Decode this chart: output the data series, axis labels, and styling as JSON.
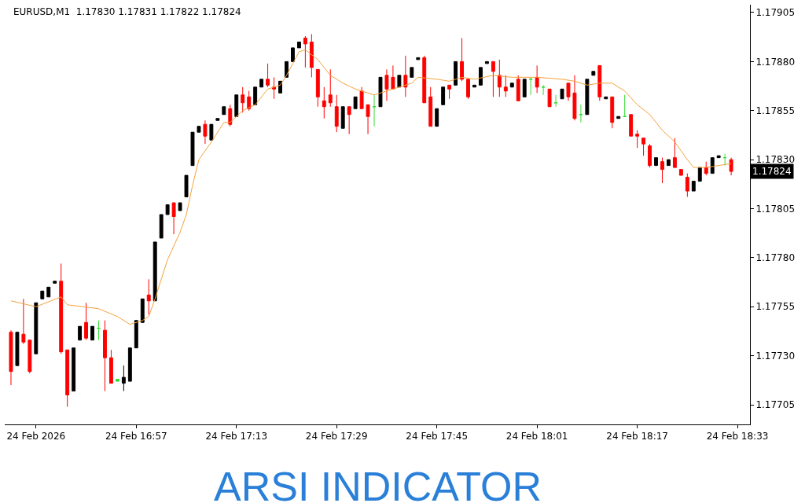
{
  "chart_data": {
    "type": "candlestick",
    "title": "EURUSD,M1  1.17830 1.17831 1.17822 1.17824",
    "subtitle": "ARSI INDICATOR",
    "x": [
      "2026-02-24T16:37",
      "2026-02-24T16:38",
      "2026-02-24T16:39",
      "2026-02-24T16:40",
      "2026-02-24T16:41",
      "2026-02-24T16:42",
      "2026-02-24T16:43",
      "2026-02-24T16:44",
      "2026-02-24T16:45",
      "2026-02-24T16:46",
      "2026-02-24T16:47",
      "2026-02-24T16:48",
      "2026-02-24T16:49",
      "2026-02-24T16:50",
      "2026-02-24T16:51",
      "2026-02-24T16:52",
      "2026-02-24T16:53",
      "2026-02-24T16:54",
      "2026-02-24T16:55",
      "2026-02-24T16:56",
      "2026-02-24T16:57",
      "2026-02-24T16:58",
      "2026-02-24T16:59",
      "2026-02-24T17:00",
      "2026-02-24T17:01",
      "2026-02-24T17:02",
      "2026-02-24T17:03",
      "2026-02-24T17:04",
      "2026-02-24T17:05",
      "2026-02-24T17:06",
      "2026-02-24T17:07",
      "2026-02-24T17:08",
      "2026-02-24T17:09",
      "2026-02-24T17:10",
      "2026-02-24T17:11",
      "2026-02-24T17:12",
      "2026-02-24T17:13",
      "2026-02-24T17:14",
      "2026-02-24T17:15",
      "2026-02-24T17:16",
      "2026-02-24T17:17",
      "2026-02-24T17:18",
      "2026-02-24T17:19",
      "2026-02-24T17:20",
      "2026-02-24T17:21",
      "2026-02-24T17:22",
      "2026-02-24T17:23",
      "2026-02-24T17:24",
      "2026-02-24T17:25",
      "2026-02-24T17:26",
      "2026-02-24T17:27",
      "2026-02-24T17:28",
      "2026-02-24T17:29",
      "2026-02-24T17:30",
      "2026-02-24T17:31",
      "2026-02-24T17:32",
      "2026-02-24T17:33",
      "2026-02-24T17:34",
      "2026-02-24T17:35",
      "2026-02-24T17:36",
      "2026-02-24T17:37",
      "2026-02-24T17:38",
      "2026-02-24T17:39",
      "2026-02-24T17:40",
      "2026-02-24T17:41",
      "2026-02-24T17:42",
      "2026-02-24T17:43",
      "2026-02-24T17:44",
      "2026-02-24T17:45",
      "2026-02-24T17:46",
      "2026-02-24T17:47",
      "2026-02-24T17:48",
      "2026-02-24T17:49",
      "2026-02-24T17:50",
      "2026-02-24T17:51",
      "2026-02-24T17:52",
      "2026-02-24T17:53",
      "2026-02-24T17:54",
      "2026-02-24T17:55",
      "2026-02-24T17:56",
      "2026-02-24T17:57",
      "2026-02-24T17:58",
      "2026-02-24T17:59",
      "2026-02-24T18:00",
      "2026-02-24T18:01",
      "2026-02-24T18:02",
      "2026-02-24T18:03",
      "2026-02-24T18:04",
      "2026-02-24T18:05",
      "2026-02-24T18:06",
      "2026-02-24T18:07",
      "2026-02-24T18:08",
      "2026-02-24T18:09",
      "2026-02-24T18:10",
      "2026-02-24T18:11",
      "2026-02-24T18:12",
      "2026-02-24T18:13",
      "2026-02-24T18:14",
      "2026-02-24T18:15",
      "2026-02-24T18:16",
      "2026-02-24T18:17",
      "2026-02-24T18:18",
      "2026-02-24T18:19",
      "2026-02-24T18:20",
      "2026-02-24T18:21",
      "2026-02-24T18:22",
      "2026-02-24T18:23",
      "2026-02-24T18:24",
      "2026-02-24T18:25",
      "2026-02-24T18:26",
      "2026-02-24T18:27",
      "2026-02-24T18:28",
      "2026-02-24T18:29",
      "2026-02-24T18:30",
      "2026-02-24T18:31",
      "2026-02-24T18:32"
    ],
    "ohlc": [
      [
        1.17742,
        1.17743,
        1.17715,
        1.17722
      ],
      [
        1.17725,
        1.17742,
        1.17725,
        1.17742
      ],
      [
        1.17741,
        1.17759,
        1.17736,
        1.17737
      ],
      [
        1.17738,
        1.17738,
        1.17721,
        1.17722
      ],
      [
        1.17731,
        1.17757,
        1.17731,
        1.17757
      ],
      [
        1.17759,
        1.17763,
        1.17759,
        1.17763
      ],
      [
        1.1776,
        1.17765,
        1.1776,
        1.17765
      ],
      [
        1.17767,
        1.17768,
        1.17767,
        1.17768
      ],
      [
        1.17768,
        1.17777,
        1.17731,
        1.17732
      ],
      [
        1.17733,
        1.17733,
        1.17704,
        1.1771
      ],
      [
        1.17712,
        1.17734,
        1.17712,
        1.17734
      ],
      [
        1.17738,
        1.17745,
        1.17738,
        1.17745
      ],
      [
        1.17747,
        1.17757,
        1.17738,
        1.17739
      ],
      [
        1.17738,
        1.17745,
        1.17738,
        1.17745
      ],
      [
        1.17744,
        1.17748,
        1.17738,
        1.17744
      ],
      [
        1.17743,
        1.17748,
        1.17712,
        1.17729
      ],
      [
        1.17729,
        1.17733,
        1.17716,
        1.17716
      ],
      [
        1.17718,
        1.17718,
        1.17717,
        1.17717
      ],
      [
        1.17716,
        1.17725,
        1.17712,
        1.17719
      ],
      [
        1.17717,
        1.17734,
        1.17717,
        1.17734
      ],
      [
        1.17734,
        1.17748,
        1.17734,
        1.17748
      ],
      [
        1.17747,
        1.17759,
        1.17747,
        1.17759
      ],
      [
        1.17761,
        1.17769,
        1.17751,
        1.17758
      ],
      [
        1.17758,
        1.17788,
        1.17758,
        1.17788
      ],
      [
        1.1779,
        1.17802,
        1.1779,
        1.17802
      ],
      [
        1.17802,
        1.17807,
        1.17802,
        1.17807
      ],
      [
        1.17808,
        1.17808,
        1.17792,
        1.17801
      ],
      [
        1.17804,
        1.17808,
        1.17804,
        1.17808
      ],
      [
        1.17811,
        1.17822,
        1.17811,
        1.17822
      ],
      [
        1.17827,
        1.17844,
        1.17827,
        1.17844
      ],
      [
        1.17844,
        1.17847,
        1.17844,
        1.17847
      ],
      [
        1.17848,
        1.1785,
        1.17838,
        1.17842
      ],
      [
        1.1784,
        1.17848,
        1.1784,
        1.17848
      ],
      [
        1.1785,
        1.17851,
        1.1785,
        1.17851
      ],
      [
        1.17853,
        1.17857,
        1.17853,
        1.17857
      ],
      [
        1.17856,
        1.17858,
        1.17847,
        1.17848
      ],
      [
        1.17852,
        1.17863,
        1.17852,
        1.17863
      ],
      [
        1.17863,
        1.17867,
        1.17854,
        1.17859
      ],
      [
        1.17862,
        1.17865,
        1.17855,
        1.17856
      ],
      [
        1.17858,
        1.17867,
        1.17858,
        1.17867
      ],
      [
        1.17867,
        1.17871,
        1.17867,
        1.17871
      ],
      [
        1.17871,
        1.17879,
        1.17867,
        1.17868
      ],
      [
        1.17867,
        1.17872,
        1.17861,
        1.17866
      ],
      [
        1.17864,
        1.1787,
        1.17864,
        1.1787
      ],
      [
        1.17872,
        1.1788,
        1.17872,
        1.1788
      ],
      [
        1.1788,
        1.17887,
        1.1788,
        1.17887
      ],
      [
        1.17887,
        1.1789,
        1.17887,
        1.1789
      ],
      [
        1.17892,
        1.17893,
        1.17877,
        1.17889
      ],
      [
        1.1789,
        1.17894,
        1.17872,
        1.17877
      ],
      [
        1.17876,
        1.17876,
        1.17857,
        1.17862
      ],
      [
        1.1786,
        1.17867,
        1.17851,
        1.17857
      ],
      [
        1.17863,
        1.17876,
        1.17857,
        1.17859
      ],
      [
        1.17857,
        1.17863,
        1.17844,
        1.17847
      ],
      [
        1.17846,
        1.17857,
        1.17846,
        1.17857
      ],
      [
        1.17857,
        1.17857,
        1.17843,
        1.17853
      ],
      [
        1.17856,
        1.17862,
        1.17856,
        1.17862
      ],
      [
        1.17865,
        1.17867,
        1.17856,
        1.17856
      ],
      [
        1.17858,
        1.17858,
        1.17843,
        1.17852
      ],
      [
        1.17857,
        1.17863,
        1.17847,
        1.17857
      ],
      [
        1.17857,
        1.17872,
        1.17857,
        1.17872
      ],
      [
        1.17873,
        1.17876,
        1.1786,
        1.17866
      ],
      [
        1.17872,
        1.17878,
        1.17866,
        1.17866
      ],
      [
        1.17867,
        1.17873,
        1.17867,
        1.17873
      ],
      [
        1.17873,
        1.17883,
        1.17862,
        1.17867
      ],
      [
        1.17872,
        1.17877,
        1.17872,
        1.17877
      ],
      [
        1.17881,
        1.17882,
        1.17881,
        1.17882
      ],
      [
        1.17882,
        1.17883,
        1.17859,
        1.17859
      ],
      [
        1.17862,
        1.17867,
        1.17847,
        1.17847
      ],
      [
        1.17847,
        1.17856,
        1.17847,
        1.17856
      ],
      [
        1.17858,
        1.17867,
        1.17858,
        1.17867
      ],
      [
        1.17868,
        1.17868,
        1.17861,
        1.17866
      ],
      [
        1.17868,
        1.1788,
        1.17868,
        1.1788
      ],
      [
        1.1788,
        1.17892,
        1.1787,
        1.17871
      ],
      [
        1.17871,
        1.17871,
        1.17861,
        1.17862
      ],
      [
        1.17867,
        1.17868,
        1.17867,
        1.17868
      ],
      [
        1.17868,
        1.17877,
        1.17868,
        1.17877
      ],
      [
        1.17879,
        1.1788,
        1.17879,
        1.1788
      ],
      [
        1.1788,
        1.1788,
        1.17862,
        1.17875
      ],
      [
        1.17873,
        1.17881,
        1.17862,
        1.17867
      ],
      [
        1.17867,
        1.17873,
        1.17862,
        1.17865
      ],
      [
        1.17867,
        1.17869,
        1.17867,
        1.17869
      ],
      [
        1.17871,
        1.17873,
        1.1786,
        1.1786
      ],
      [
        1.17862,
        1.17871,
        1.17862,
        1.17871
      ],
      [
        1.17871,
        1.17872,
        1.17863,
        1.17871
      ],
      [
        1.17872,
        1.17878,
        1.17864,
        1.17867
      ],
      [
        1.17867,
        1.17868,
        1.17863,
        1.17867
      ],
      [
        1.17866,
        1.17866,
        1.17857,
        1.17857
      ],
      [
        1.17859,
        1.17863,
        1.17857,
        1.17859
      ],
      [
        1.17861,
        1.17866,
        1.17861,
        1.17866
      ],
      [
        1.17869,
        1.17869,
        1.1786,
        1.17862
      ],
      [
        1.17864,
        1.17873,
        1.1785,
        1.17851
      ],
      [
        1.17853,
        1.17858,
        1.17849,
        1.17853
      ],
      [
        1.17853,
        1.17871,
        1.17853,
        1.17871
      ],
      [
        1.17873,
        1.17875,
        1.17873,
        1.17875
      ],
      [
        1.17878,
        1.17878,
        1.1786,
        1.17862
      ],
      [
        1.17861,
        1.17862,
        1.17861,
        1.17862
      ],
      [
        1.17862,
        1.17862,
        1.17846,
        1.17849
      ],
      [
        1.17851,
        1.17852,
        1.17851,
        1.17852
      ],
      [
        1.17852,
        1.17863,
        1.17852,
        1.17852
      ],
      [
        1.17853,
        1.17853,
        1.17842,
        1.17842
      ],
      [
        1.17843,
        1.17845,
        1.17836,
        1.17842
      ],
      [
        1.17841,
        1.17841,
        1.17832,
        1.17838
      ],
      [
        1.17837,
        1.17838,
        1.17826,
        1.17827
      ],
      [
        1.17827,
        1.17831,
        1.17827,
        1.17831
      ],
      [
        1.17829,
        1.17831,
        1.17818,
        1.17825
      ],
      [
        1.17827,
        1.1783,
        1.17827,
        1.1783
      ],
      [
        1.17831,
        1.17841,
        1.17826,
        1.17826
      ],
      [
        1.17825,
        1.17825,
        1.17822,
        1.17822
      ],
      [
        1.17821,
        1.17823,
        1.17811,
        1.17814
      ],
      [
        1.17814,
        1.17819,
        1.17814,
        1.17819
      ],
      [
        1.17819,
        1.17826,
        1.17819,
        1.17826
      ],
      [
        1.17826,
        1.17829,
        1.17822,
        1.17823
      ],
      [
        1.17823,
        1.17831,
        1.17823,
        1.17831
      ],
      [
        1.17831,
        1.17832,
        1.17831,
        1.17832
      ],
      [
        1.17831,
        1.17833,
        1.17827,
        1.17831
      ],
      [
        1.1783,
        1.17831,
        1.17822,
        1.17824
      ]
    ],
    "colors": [
      "#ff0000",
      "#000000",
      "#ff0000",
      "#ff0000",
      "#000000",
      "#000000",
      "#000000",
      "#000000",
      "#ff0000",
      "#ff0000",
      "#000000",
      "#000000",
      "#ff0000",
      "#000000",
      "#33dd33",
      "#ff0000",
      "#ff0000",
      "#33dd33",
      "#000000",
      "#000000",
      "#000000",
      "#000000",
      "#ff0000",
      "#000000",
      "#000000",
      "#000000",
      "#ff0000",
      "#000000",
      "#000000",
      "#000000",
      "#000000",
      "#ff0000",
      "#000000",
      "#000000",
      "#000000",
      "#ff0000",
      "#000000",
      "#ff0000",
      "#ff0000",
      "#000000",
      "#000000",
      "#ff0000",
      "#ff0000",
      "#000000",
      "#000000",
      "#000000",
      "#000000",
      "#ff0000",
      "#ff0000",
      "#ff0000",
      "#ff0000",
      "#ff0000",
      "#ff0000",
      "#000000",
      "#ff0000",
      "#000000",
      "#ff0000",
      "#ff0000",
      "#33dd33",
      "#000000",
      "#ff0000",
      "#ff0000",
      "#000000",
      "#ff0000",
      "#000000",
      "#000000",
      "#ff0000",
      "#ff0000",
      "#000000",
      "#000000",
      "#ff0000",
      "#000000",
      "#ff0000",
      "#ff0000",
      "#000000",
      "#000000",
      "#000000",
      "#ff0000",
      "#ff0000",
      "#ff0000",
      "#000000",
      "#ff0000",
      "#000000",
      "#33dd33",
      "#ff0000",
      "#33dd33",
      "#ff0000",
      "#33dd33",
      "#000000",
      "#ff0000",
      "#ff0000",
      "#33dd33",
      "#000000",
      "#000000",
      "#ff0000",
      "#000000",
      "#ff0000",
      "#000000",
      "#33dd33",
      "#ff0000",
      "#ff0000",
      "#ff0000",
      "#ff0000",
      "#000000",
      "#ff0000",
      "#000000",
      "#ff0000",
      "#ff0000",
      "#ff0000",
      "#000000",
      "#000000",
      "#ff0000",
      "#000000",
      "#000000",
      "#33dd33",
      "#ff0000"
    ],
    "series": [
      {
        "type": "line",
        "color": "#f5a23a",
        "x": [
          "2026-02-24T16:37",
          "2026-02-24T16:41",
          "2026-02-24T16:45",
          "2026-02-24T16:46",
          "2026-02-24T16:51",
          "2026-02-24T16:54",
          "2026-02-24T16:56",
          "2026-02-24T16:58",
          "2026-02-24T16:59",
          "2026-02-24T17:00",
          "2026-02-24T17:02",
          "2026-02-24T17:04",
          "2026-02-24T17:05",
          "2026-02-24T17:06",
          "2026-02-24T17:07",
          "2026-02-24T17:09",
          "2026-02-24T17:11",
          "2026-02-24T17:12",
          "2026-02-24T17:14",
          "2026-02-24T17:16",
          "2026-02-24T17:18",
          "2026-02-24T17:20",
          "2026-02-24T17:21",
          "2026-02-24T17:23",
          "2026-02-24T17:24",
          "2026-02-24T17:26",
          "2026-02-24T17:28",
          "2026-02-24T17:30",
          "2026-02-24T17:32",
          "2026-02-24T17:35",
          "2026-02-24T17:37",
          "2026-02-24T17:39",
          "2026-02-24T17:41",
          "2026-02-24T17:42",
          "2026-02-24T17:45",
          "2026-02-24T17:47",
          "2026-02-24T17:49",
          "2026-02-24T17:51",
          "2026-02-24T17:54",
          "2026-02-24T17:57",
          "2026-02-24T18:01",
          "2026-02-24T18:05",
          "2026-02-24T18:07",
          "2026-02-24T18:09",
          "2026-02-24T18:11",
          "2026-02-24T18:13",
          "2026-02-24T18:15",
          "2026-02-24T18:17",
          "2026-02-24T18:19",
          "2026-02-24T18:21",
          "2026-02-24T18:23",
          "2026-02-24T18:25",
          "2026-02-24T18:26",
          "2026-02-24T18:28",
          "2026-02-24T18:30",
          "2026-02-24T18:32"
        ],
        "values": [
          1.17758,
          1.17755,
          1.1776,
          1.17756,
          1.17754,
          1.1775,
          1.17746,
          1.17748,
          1.1775,
          1.17759,
          1.17779,
          1.17793,
          1.17802,
          1.17817,
          1.1783,
          1.17839,
          1.17849,
          1.17849,
          1.17855,
          1.17858,
          1.17866,
          1.17868,
          1.17873,
          1.17885,
          1.17886,
          1.17881,
          1.17873,
          1.17869,
          1.17866,
          1.17863,
          1.17865,
          1.17867,
          1.17869,
          1.17872,
          1.17871,
          1.1787,
          1.17872,
          1.17871,
          1.17873,
          1.17872,
          1.17872,
          1.17871,
          1.1787,
          1.17868,
          1.17869,
          1.17869,
          1.17865,
          1.17858,
          1.17853,
          1.17845,
          1.17839,
          1.1783,
          1.17826,
          1.17826,
          1.17827,
          1.17828
        ]
      }
    ],
    "xlim": [
      "2026-02-24T16:36",
      "2026-02-24T18:35"
    ],
    "xticks": [
      {
        "value": "2026-02-24T16:41",
        "label": "24 Feb 2026"
      },
      {
        "value": "2026-02-24T16:57",
        "label": "24 Feb 16:57"
      },
      {
        "value": "2026-02-24T17:13",
        "label": "24 Feb 17:13"
      },
      {
        "value": "2026-02-24T17:29",
        "label": "24 Feb 17:29"
      },
      {
        "value": "2026-02-24T17:45",
        "label": "24 Feb 17:45"
      },
      {
        "value": "2026-02-24T18:01",
        "label": "24 Feb 18:01"
      },
      {
        "value": "2026-02-24T18:17",
        "label": "24 Feb 18:17"
      },
      {
        "value": "2026-02-24T18:33",
        "label": "24 Feb 18:33"
      }
    ],
    "ylim": [
      1.17695,
      1.17909
    ],
    "yticks": [
      1.17705,
      {
        "value": 1.1773,
        "label": "1.17730"
      },
      1.17755,
      {
        "value": 1.1778,
        "label": "1.17780"
      },
      1.17805,
      {
        "value": 1.1783,
        "label": "1.17830"
      },
      1.17855,
      {
        "value": 1.1788,
        "label": "1.17880"
      },
      1.17905
    ],
    "annotations": [
      "1.17824"
    ],
    "grid": false
  }
}
